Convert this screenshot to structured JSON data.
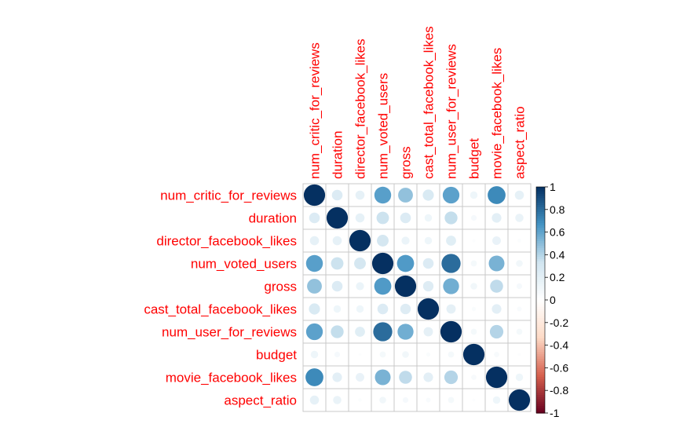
{
  "chart_data": {
    "type": "heatmap",
    "style": "corrplot circles, upper and lower triangle, size and color encode correlation",
    "variables": [
      "num_critic_for_reviews",
      "duration",
      "director_facebook_likes",
      "num_voted_users",
      "gross",
      "cast_total_facebook_likes",
      "num_user_for_reviews",
      "budget",
      "movie_facebook_likes",
      "aspect_ratio"
    ],
    "matrix": [
      [
        1.0,
        0.25,
        0.18,
        0.62,
        0.48,
        0.27,
        0.61,
        0.12,
        0.7,
        0.18
      ],
      [
        0.25,
        1.0,
        0.18,
        0.34,
        0.25,
        0.12,
        0.36,
        0.07,
        0.2,
        0.15
      ],
      [
        0.18,
        0.18,
        1.0,
        0.3,
        0.14,
        0.12,
        0.22,
        0.02,
        0.16,
        0.03
      ],
      [
        0.62,
        0.34,
        0.3,
        1.0,
        0.64,
        0.25,
        0.8,
        0.08,
        0.54,
        0.1
      ],
      [
        0.48,
        0.25,
        0.14,
        0.64,
        1.0,
        0.24,
        0.56,
        0.1,
        0.37,
        0.07
      ],
      [
        0.27,
        0.12,
        0.12,
        0.25,
        0.24,
        1.0,
        0.19,
        0.04,
        0.2,
        0.05
      ],
      [
        0.61,
        0.36,
        0.22,
        0.8,
        0.56,
        0.19,
        1.0,
        0.08,
        0.4,
        0.08
      ],
      [
        0.12,
        0.07,
        0.02,
        0.08,
        0.1,
        0.04,
        0.08,
        1.0,
        0.06,
        0.02
      ],
      [
        0.7,
        0.2,
        0.16,
        0.54,
        0.37,
        0.2,
        0.4,
        0.06,
        1.0,
        0.12
      ],
      [
        0.18,
        0.15,
        0.03,
        0.1,
        0.07,
        0.05,
        0.08,
        0.02,
        0.12,
        1.0
      ]
    ],
    "colorbar": {
      "ticks": [
        "1",
        "0.8",
        "0.6",
        "0.4",
        "0.2",
        "0",
        "-0.2",
        "-0.4",
        "-0.6",
        "-0.8",
        "-1"
      ],
      "range": [
        -1,
        1
      ],
      "colors": {
        "neg_strong": "#67001f",
        "neg_mid": "#d6604d",
        "neg_light": "#fddbc7",
        "zero": "#ffffff",
        "pos_light": "#d1e5f0",
        "pos_mid": "#4393c3",
        "pos_strong": "#053061"
      }
    },
    "label_color": "#ff0000",
    "grid": true
  }
}
